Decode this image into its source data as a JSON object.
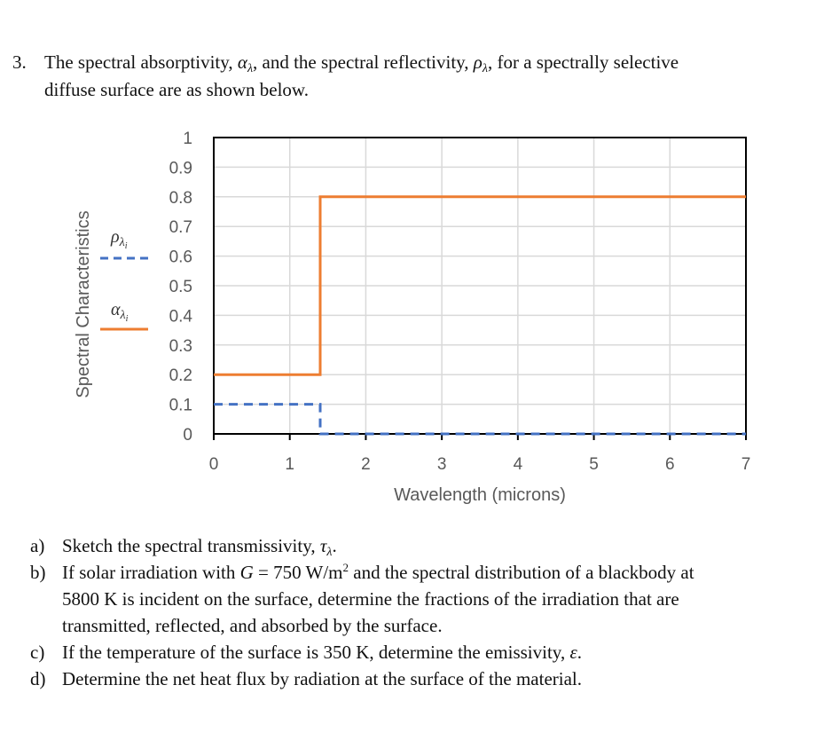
{
  "problem": {
    "number": "3.",
    "intro_line1": {
      "pre": "The spectral absorptivity, ",
      "alpha_sym": "α",
      "alpha_sub": "λ",
      "mid": ", and the spectral reflectivity, ",
      "rho_sym": "ρ",
      "rho_sub": "λ",
      "post": ", for a spectrally selective"
    },
    "intro_line2": "diffuse surface are as shown below."
  },
  "parts": [
    {
      "label": "a)",
      "pre": "Sketch the spectral transmissivity, ",
      "sym": "τ",
      "sub": "λ",
      "post": "."
    },
    {
      "label": "b)",
      "line1_pre": "If solar irradiation with ",
      "line1_var": "G",
      "line1_mid": " = 750 W/m",
      "line1_sup": "2",
      "line1_post": " and the spectral distribution of a blackbody at",
      "line2": "5800 K is incident on the surface, determine the fractions of the irradiation that are",
      "line3": "transmitted, reflected, and absorbed by the surface."
    },
    {
      "label": "c)",
      "pre": "If the temperature of the surface is 350 K, determine the emissivity, ",
      "sym": "ε",
      "post": "."
    },
    {
      "label": "d)",
      "text": "Determine the net heat flux by radiation at the surface of the material."
    }
  ],
  "chart_data": {
    "type": "line",
    "title": "",
    "xlabel": "Wavelength (microns)",
    "ylabel": "Spectral Characteristics",
    "xlim": [
      0,
      7
    ],
    "ylim": [
      0,
      1
    ],
    "x_ticks": [
      "0",
      "1",
      "2",
      "3",
      "4",
      "5",
      "6",
      "7"
    ],
    "y_ticks": [
      "0",
      "0.1",
      "0.2",
      "0.3",
      "0.4",
      "0.5",
      "0.6",
      "0.7",
      "0.8",
      "0.9",
      "1"
    ],
    "grid": true,
    "legend_position": "left",
    "series": [
      {
        "name": "ρλi",
        "label_sym": "ρ",
        "label_sub": "λ",
        "label_subsub": "i",
        "style": "dashed",
        "color": "#4472C4",
        "points": [
          [
            0,
            0.1
          ],
          [
            1.4,
            0.1
          ],
          [
            1.4,
            0.0
          ],
          [
            7,
            0.0
          ]
        ]
      },
      {
        "name": "αλi",
        "label_sym": "α",
        "label_sub": "λ",
        "label_subsub": "i",
        "style": "solid",
        "color": "#ED7D31",
        "points": [
          [
            0,
            0.2
          ],
          [
            1.4,
            0.2
          ],
          [
            1.4,
            0.8
          ],
          [
            7,
            0.8
          ]
        ]
      }
    ]
  }
}
